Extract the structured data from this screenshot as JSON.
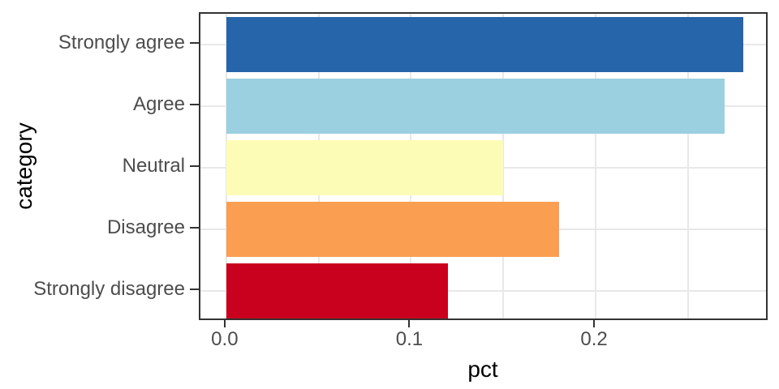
{
  "chart_data": {
    "type": "bar",
    "orientation": "horizontal",
    "title": "",
    "xlabel": "pct",
    "ylabel": "category",
    "categories": [
      "Strongly agree",
      "Agree",
      "Neutral",
      "Disagree",
      "Strongly disagree"
    ],
    "values": [
      0.28,
      0.27,
      0.15,
      0.18,
      0.12
    ],
    "bar_colors": [
      "#2665A9",
      "#9AD0E0",
      "#FDFCB6",
      "#FA9E52",
      "#C9001E"
    ],
    "xlim": [
      -0.014,
      0.294
    ],
    "x_major_ticks": [
      0,
      0.1,
      0.2
    ],
    "x_major_tick_labels": [
      "0.0",
      "0.1",
      "0.2"
    ],
    "x_minor_ticks": [
      0.05,
      0.15,
      0.25
    ],
    "bar_value_origin": 0,
    "grid": true,
    "legend": "none",
    "theme": {
      "panel_border_color": "#333333",
      "grid_color": "#E8E8E8",
      "tick_color": "#333333",
      "tick_label_color": "#4D4D4D",
      "axis_title_color": "#000000",
      "background": "#FFFFFF"
    }
  }
}
